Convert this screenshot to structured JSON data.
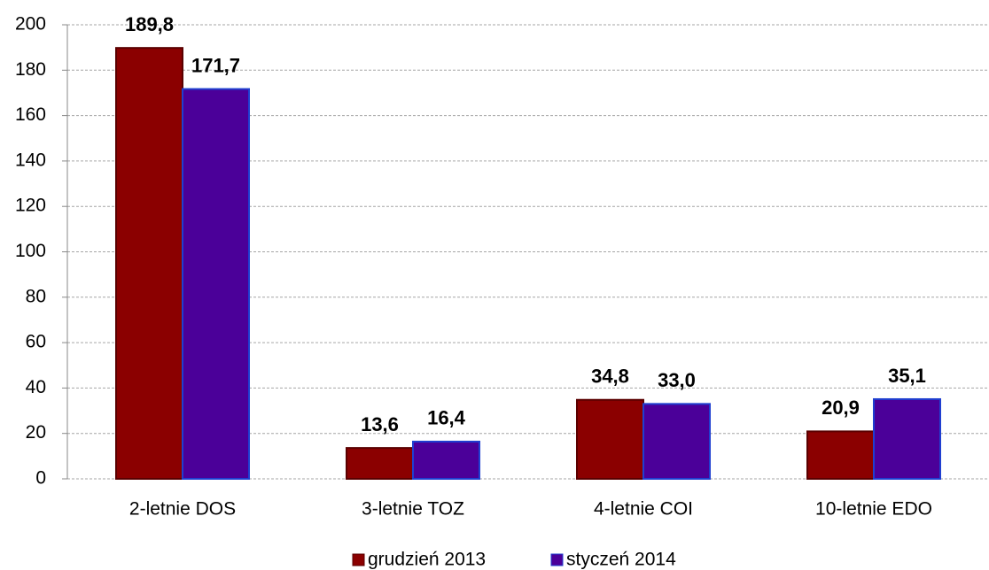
{
  "chart_data": {
    "type": "bar",
    "categories": [
      "2-letnie DOS",
      "3-letnie TOZ",
      "4-letnie COI",
      "10-letnie EDO"
    ],
    "series": [
      {
        "name": "grudzień 2013",
        "color": "#8b0000",
        "values": [
          189.8,
          13.6,
          34.8,
          20.9
        ],
        "value_labels": [
          "189,8",
          "13,6",
          "34,8",
          "20,9"
        ]
      },
      {
        "name": "styczeń 2014",
        "color": "#4b0099",
        "values": [
          171.7,
          16.4,
          33.0,
          35.1
        ],
        "value_labels": [
          "171,7",
          "16,4",
          "33,0",
          "35,1"
        ]
      }
    ],
    "ylim": [
      0,
      200
    ],
    "yticks": [
      0,
      20,
      40,
      60,
      80,
      100,
      120,
      140,
      160,
      180,
      200
    ],
    "grid": true,
    "legend": "bottom"
  }
}
